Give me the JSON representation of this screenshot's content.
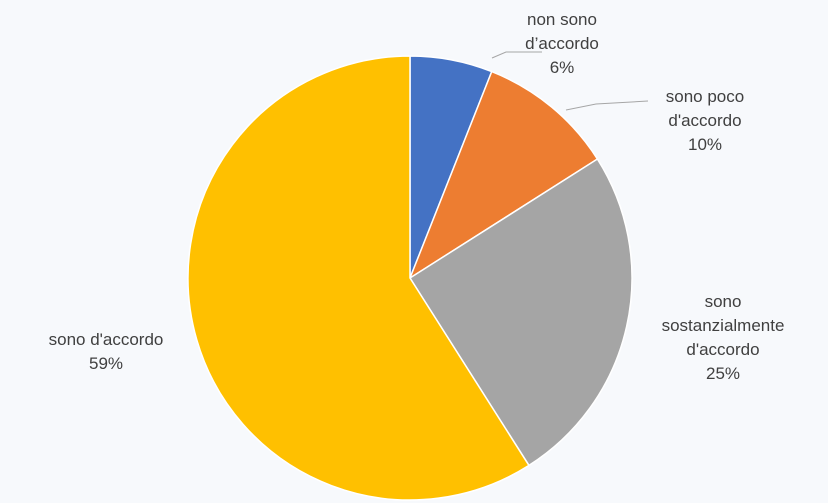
{
  "chart_data": {
    "type": "pie",
    "title": "",
    "slices": [
      {
        "label_lines": [
          "non sono",
          "d’accordo"
        ],
        "percent_label": "6%",
        "value": 6,
        "color": "#4472c4"
      },
      {
        "label_lines": [
          "sono poco",
          "d'accordo"
        ],
        "percent_label": "10%",
        "value": 10,
        "color": "#ed7d31"
      },
      {
        "label_lines": [
          "sono",
          "sostanzialmente",
          "d'accordo"
        ],
        "percent_label": "25%",
        "value": 25,
        "color": "#a5a5a5"
      },
      {
        "label_lines": [
          "sono d'accordo"
        ],
        "percent_label": "59%",
        "value": 59,
        "color": "#ffc000"
      }
    ],
    "start_angle_deg": 0,
    "direction": "clockwise",
    "legend": "none",
    "data_labels": "outside"
  }
}
